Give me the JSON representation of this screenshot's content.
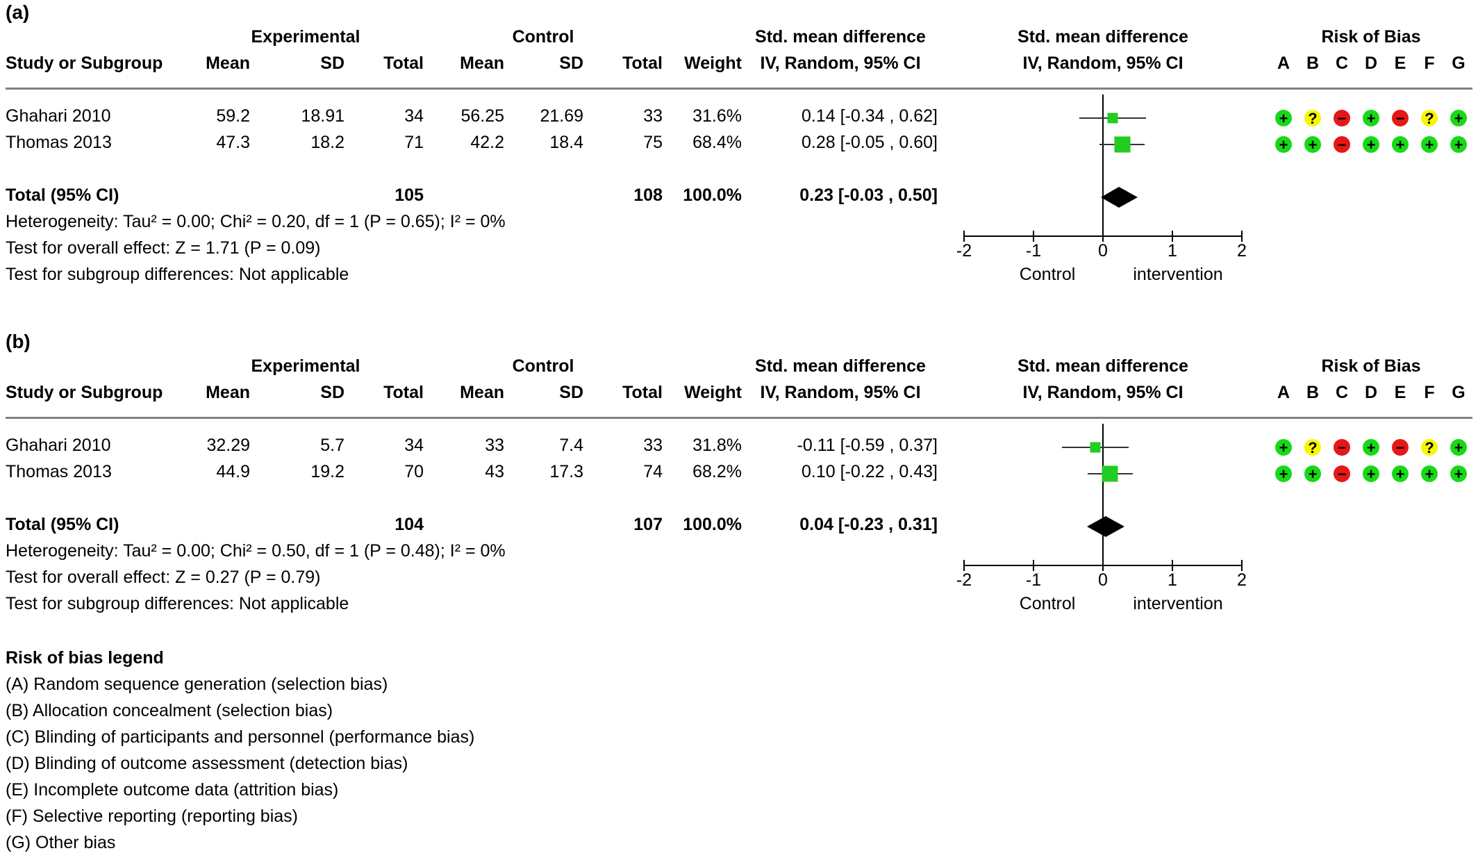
{
  "chart_data": [
    {
      "type": "forest",
      "panel_label": "(a)",
      "headers": {
        "group_experimental": "Experimental",
        "group_control": "Control",
        "smd_col_1": "Std. mean difference",
        "smd_col_2": "IV, Random, 95% CI",
        "plot_col_1": "Std. mean difference",
        "plot_col_2": "IV, Random, 95% CI",
        "rob_title": "Risk of Bias",
        "study": "Study or Subgroup",
        "mean_e": "Mean",
        "sd_e": "SD",
        "total_e": "Total",
        "mean_c": "Mean",
        "sd_c": "SD",
        "total_c": "Total",
        "weight": "Weight"
      },
      "rob_domains": [
        "A",
        "B",
        "C",
        "D",
        "E",
        "F",
        "G"
      ],
      "studies": [
        {
          "name": "Ghahari 2010",
          "mean_e": "59.2",
          "sd_e": "18.91",
          "total_e": "34",
          "mean_c": "56.25",
          "sd_c": "21.69",
          "total_c": "33",
          "weight": "31.6%",
          "ci_text": "0.14 [-0.34 , 0.62]",
          "smd": 0.14,
          "lo": -0.34,
          "hi": 0.62,
          "w": 31.6,
          "rob": [
            "low",
            "unclear",
            "high",
            "low",
            "high",
            "unclear",
            "low"
          ]
        },
        {
          "name": "Thomas 2013",
          "mean_e": "47.3",
          "sd_e": "18.2",
          "total_e": "71",
          "mean_c": "42.2",
          "sd_c": "18.4",
          "total_c": "75",
          "weight": "68.4%",
          "ci_text": "0.28 [-0.05 , 0.60]",
          "smd": 0.28,
          "lo": -0.05,
          "hi": 0.6,
          "w": 68.4,
          "rob": [
            "low",
            "low",
            "high",
            "low",
            "low",
            "low",
            "low"
          ]
        }
      ],
      "total": {
        "label": "Total (95% CI)",
        "total_e": "105",
        "total_c": "108",
        "weight": "100.0%",
        "ci_text": "0.23 [-0.03 , 0.50]",
        "smd": 0.23,
        "lo": -0.03,
        "hi": 0.5
      },
      "heterogeneity": "Heterogeneity: Tau² = 0.00; Chi² = 0.20, df = 1 (P = 0.65); I² = 0%",
      "overall_effect": "Test for overall effect: Z = 1.71 (P = 0.09)",
      "subgroup": "Test for subgroup differences: Not applicable",
      "axis": {
        "ticks": [
          -2,
          -1,
          0,
          1,
          2
        ],
        "tick_labels": [
          "-2",
          "-1",
          "0",
          "1",
          "2"
        ],
        "xlim": [
          -2,
          2
        ],
        "left_label": "Control",
        "right_label": "intervention"
      }
    },
    {
      "type": "forest",
      "panel_label": "(b)",
      "headers": {
        "group_experimental": "Experimental",
        "group_control": "Control",
        "smd_col_1": "Std. mean difference",
        "smd_col_2": "IV, Random, 95% CI",
        "plot_col_1": "Std. mean difference",
        "plot_col_2": "IV, Random, 95% CI",
        "rob_title": "Risk of Bias",
        "study": "Study or Subgroup",
        "mean_e": "Mean",
        "sd_e": "SD",
        "total_e": "Total",
        "mean_c": "Mean",
        "sd_c": "SD",
        "total_c": "Total",
        "weight": "Weight"
      },
      "rob_domains": [
        "A",
        "B",
        "C",
        "D",
        "E",
        "F",
        "G"
      ],
      "studies": [
        {
          "name": "Ghahari 2010",
          "mean_e": "32.29",
          "sd_e": "5.7",
          "total_e": "34",
          "mean_c": "33",
          "sd_c": "7.4",
          "total_c": "33",
          "weight": "31.8%",
          "ci_text": "-0.11 [-0.59 , 0.37]",
          "smd": -0.11,
          "lo": -0.59,
          "hi": 0.37,
          "w": 31.8,
          "rob": [
            "low",
            "unclear",
            "high",
            "low",
            "high",
            "unclear",
            "low"
          ]
        },
        {
          "name": "Thomas 2013",
          "mean_e": "44.9",
          "sd_e": "19.2",
          "total_e": "70",
          "mean_c": "43",
          "sd_c": "17.3",
          "total_c": "74",
          "weight": "68.2%",
          "ci_text": "0.10 [-0.22 , 0.43]",
          "smd": 0.1,
          "lo": -0.22,
          "hi": 0.43,
          "w": 68.2,
          "rob": [
            "low",
            "low",
            "high",
            "low",
            "low",
            "low",
            "low"
          ]
        }
      ],
      "total": {
        "label": "Total (95% CI)",
        "total_e": "104",
        "total_c": "107",
        "weight": "100.0%",
        "ci_text": "0.04 [-0.23 , 0.31]",
        "smd": 0.04,
        "lo": -0.23,
        "hi": 0.31
      },
      "heterogeneity": "Heterogeneity: Tau² = 0.00; Chi² = 0.50, df = 1 (P = 0.48); I² = 0%",
      "overall_effect": "Test for overall effect: Z = 0.27 (P = 0.79)",
      "subgroup": "Test for subgroup differences: Not applicable",
      "axis": {
        "ticks": [
          -2,
          -1,
          0,
          1,
          2
        ],
        "tick_labels": [
          "-2",
          "-1",
          "0",
          "1",
          "2"
        ],
        "xlim": [
          -2,
          2
        ],
        "left_label": "Control",
        "right_label": "intervention"
      }
    }
  ],
  "legend": {
    "title": "Risk of bias legend",
    "items": [
      "(A) Random sequence generation (selection bias)",
      "(B) Allocation concealment (selection bias)",
      "(C) Blinding of participants and personnel (performance bias)",
      "(D) Blinding of outcome assessment (detection bias)",
      "(E) Incomplete outcome data (attrition bias)",
      "(F) Selective reporting (reporting bias)",
      "(G) Other bias"
    ]
  },
  "colors": {
    "low": "#17d917",
    "unclear": "#f7f700",
    "high": "#e61717",
    "square": "#22cc22",
    "diamond": "#000000",
    "rule": "#808080"
  }
}
